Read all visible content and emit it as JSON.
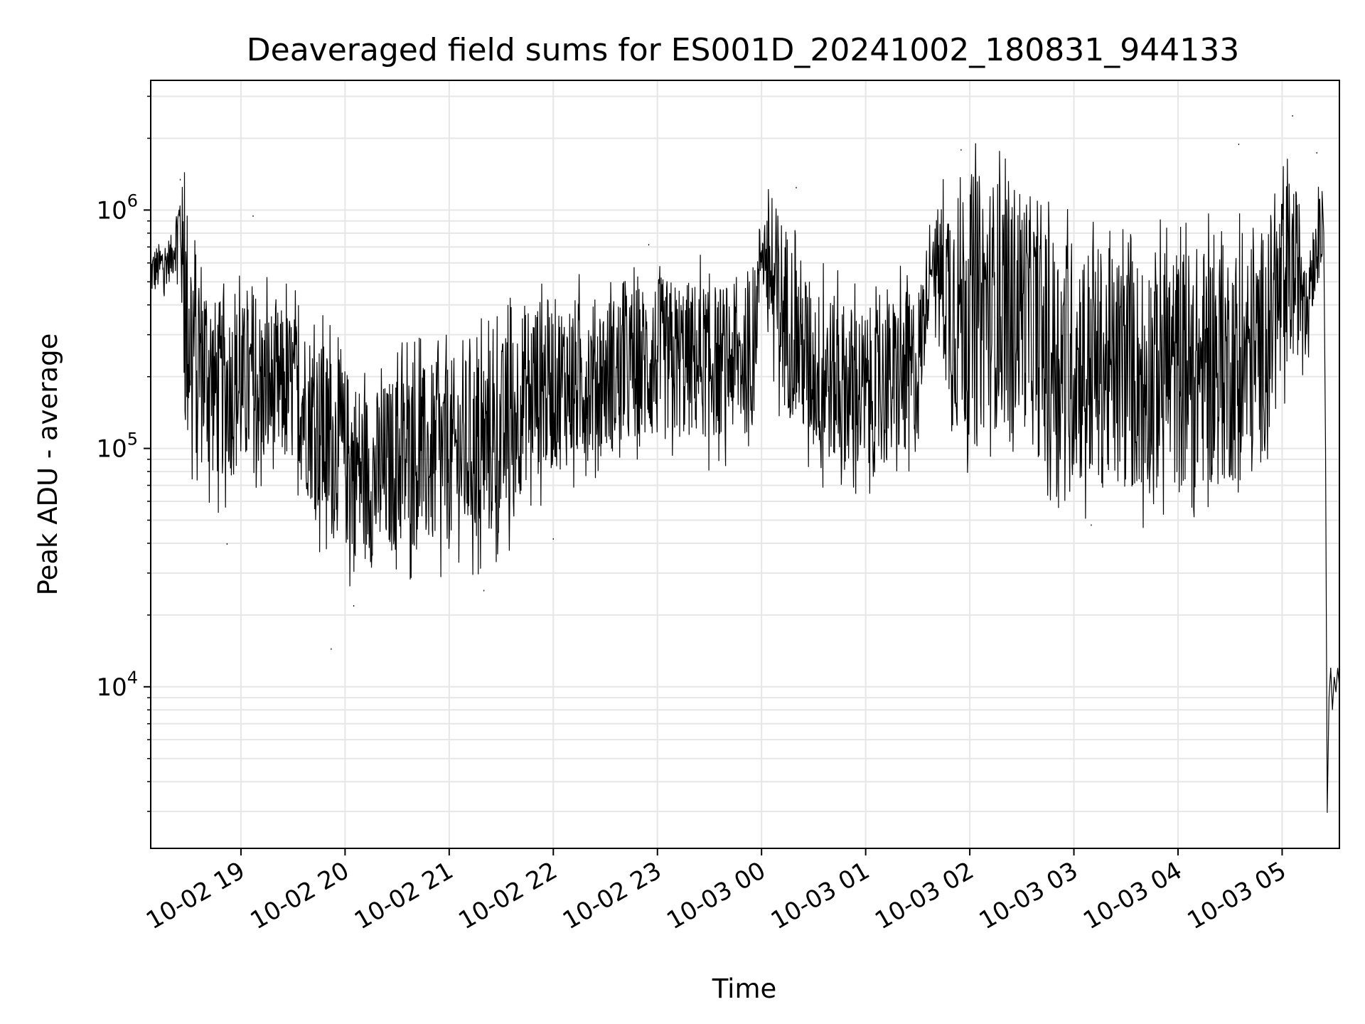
{
  "chart_data": {
    "type": "line",
    "title": "Deaveraged field sums for ES001D_20241002_180831_944133",
    "xlabel": "Time",
    "ylabel": "Peak ADU - average",
    "yscale": "log",
    "ylim": [
      2100,
      3500000
    ],
    "xlim": [
      "2024-10-02 18:08",
      "2024-10-03 05:33"
    ],
    "grid": true,
    "line_color": "#000000",
    "x_ticks": [
      "10-02 19",
      "10-02 20",
      "10-02 21",
      "10-02 22",
      "10-02 23",
      "10-03 00",
      "10-03 01",
      "10-03 02",
      "10-03 03",
      "10-03 04",
      "10-03 05"
    ],
    "y_ticks": [
      {
        "base": "10",
        "exp": "4"
      },
      {
        "base": "10",
        "exp": "5"
      },
      {
        "base": "10",
        "exp": "6"
      }
    ],
    "series": [
      {
        "envelope": [
          {
            "x": "2024-10-02 18:08",
            "lo": 420000,
            "hi": 700000
          },
          {
            "x": "2024-10-02 18:20",
            "lo": 500000,
            "hi": 800000
          },
          {
            "x": "2024-10-02 18:25",
            "lo": 600000,
            "hi": 1400000
          },
          {
            "x": "2024-10-02 18:28",
            "lo": 90000,
            "hi": 1300000
          },
          {
            "x": "2024-10-02 18:45",
            "lo": 70000,
            "hi": 450000
          },
          {
            "x": "2024-10-02 19:30",
            "lo": 80000,
            "hi": 400000
          },
          {
            "x": "2024-10-02 19:50",
            "lo": 40000,
            "hi": 280000
          },
          {
            "x": "2024-10-02 20:15",
            "lo": 30000,
            "hi": 180000
          },
          {
            "x": "2024-10-02 20:30",
            "lo": 35000,
            "hi": 220000
          },
          {
            "x": "2024-10-02 21:00",
            "lo": 35000,
            "hi": 250000
          },
          {
            "x": "2024-10-02 21:30",
            "lo": 40000,
            "hi": 300000
          },
          {
            "x": "2024-10-02 21:45",
            "lo": 70000,
            "hi": 450000
          },
          {
            "x": "2024-10-02 22:30",
            "lo": 90000,
            "hi": 450000
          },
          {
            "x": "2024-10-02 23:00",
            "lo": 100000,
            "hi": 550000
          },
          {
            "x": "2024-10-02 23:55",
            "lo": 110000,
            "hi": 500000
          },
          {
            "x": "2024-10-03 00:00",
            "lo": 500000,
            "hi": 1100000
          },
          {
            "x": "2024-10-03 00:10",
            "lo": 150000,
            "hi": 1100000
          },
          {
            "x": "2024-10-03 00:30",
            "lo": 90000,
            "hi": 500000
          },
          {
            "x": "2024-10-03 01:00",
            "lo": 70000,
            "hi": 400000
          },
          {
            "x": "2024-10-03 01:30",
            "lo": 90000,
            "hi": 500000
          },
          {
            "x": "2024-10-03 01:38",
            "lo": 500000,
            "hi": 900000
          },
          {
            "x": "2024-10-03 01:50",
            "lo": 100000,
            "hi": 1600000
          },
          {
            "x": "2024-10-03 02:30",
            "lo": 120000,
            "hi": 1400000
          },
          {
            "x": "2024-10-03 02:45",
            "lo": 70000,
            "hi": 900000
          },
          {
            "x": "2024-10-03 03:30",
            "lo": 60000,
            "hi": 700000
          },
          {
            "x": "2024-10-03 04:00",
            "lo": 60000,
            "hi": 750000
          },
          {
            "x": "2024-10-03 04:45",
            "lo": 70000,
            "hi": 800000
          },
          {
            "x": "2024-10-03 05:05",
            "lo": 200000,
            "hi": 1500000
          },
          {
            "x": "2024-10-03 05:15",
            "lo": 300000,
            "hi": 900000
          },
          {
            "x": "2024-10-03 05:25",
            "lo": 700000,
            "hi": 1300000
          }
        ],
        "points": [
          {
            "x": "2024-10-02 18:08",
            "y": 480000
          },
          {
            "x": "2024-10-02 18:25",
            "y": 1350000
          },
          {
            "x": "2024-10-02 18:52",
            "y": 40000
          },
          {
            "x": "2024-10-02 19:07",
            "y": 950000
          },
          {
            "x": "2024-10-02 19:52",
            "y": 14500
          },
          {
            "x": "2024-10-02 20:05",
            "y": 22000
          },
          {
            "x": "2024-10-02 21:20",
            "y": 25500
          },
          {
            "x": "2024-10-02 22:00",
            "y": 42000
          },
          {
            "x": "2024-10-02 22:55",
            "y": 720000
          },
          {
            "x": "2024-10-03 00:20",
            "y": 1250000
          },
          {
            "x": "2024-10-03 01:55",
            "y": 1800000
          },
          {
            "x": "2024-10-03 03:10",
            "y": 48000
          },
          {
            "x": "2024-10-03 04:35",
            "y": 1900000
          },
          {
            "x": "2024-10-03 05:06",
            "y": 2500000
          },
          {
            "x": "2024-10-03 05:20",
            "y": 1750000
          },
          {
            "x": "2024-10-03 05:26",
            "y": 3000
          },
          {
            "x": "2024-10-03 05:28",
            "y": 12000
          },
          {
            "x": "2024-10-03 05:33",
            "y": 10000
          }
        ],
        "tail": [
          {
            "x": "2024-10-03 05:23",
            "y": 1200000
          },
          {
            "x": "2024-10-03 05:24",
            "y": 800000
          },
          {
            "x": "2024-10-03 05:25",
            "y": 100000
          },
          {
            "x": "2024-10-03 05:26",
            "y": 3000
          },
          {
            "x": "2024-10-03 05:27",
            "y": 9000
          },
          {
            "x": "2024-10-03 05:28",
            "y": 12000
          },
          {
            "x": "2024-10-03 05:29",
            "y": 8000
          },
          {
            "x": "2024-10-03 05:30",
            "y": 11000
          },
          {
            "x": "2024-10-03 05:31",
            "y": 9500
          },
          {
            "x": "2024-10-03 05:32",
            "y": 12000
          },
          {
            "x": "2024-10-03 05:33",
            "y": 10000
          }
        ]
      }
    ]
  }
}
